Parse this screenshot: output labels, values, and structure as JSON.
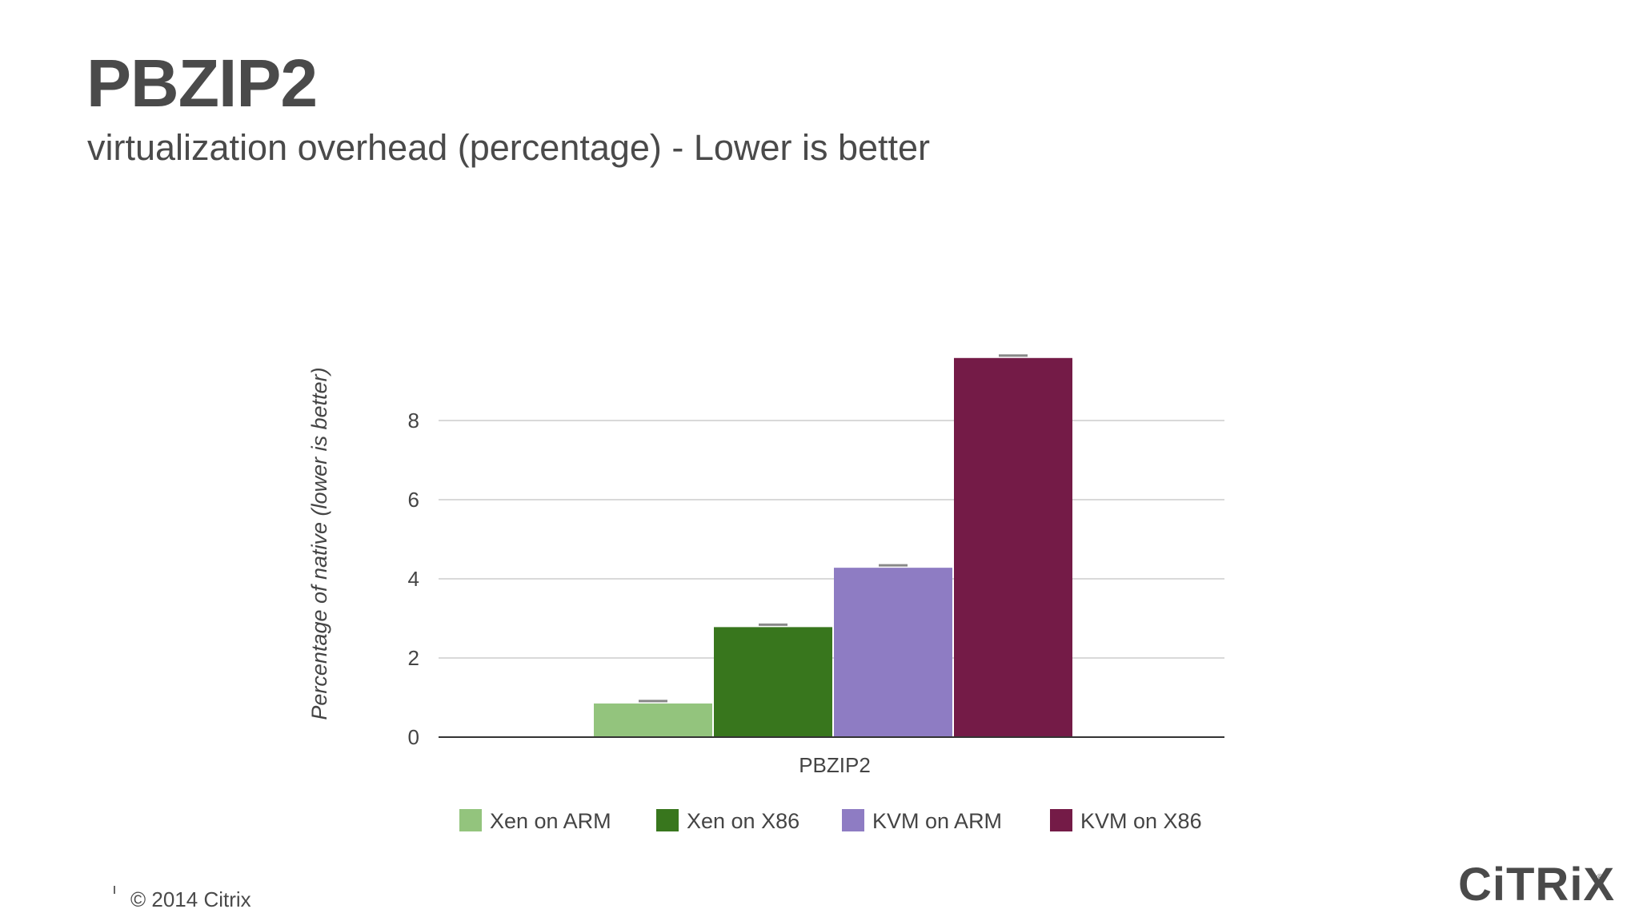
{
  "slide": {
    "title": "PBZIP2",
    "subtitle": "virtualization overhead (percentage) - Lower is better",
    "footer": "© 2014 Citrix",
    "logo_text": "CiTRiX",
    "logo_reg": "®"
  },
  "chart_data": {
    "type": "bar",
    "categories": [
      "PBZIP2"
    ],
    "series": [
      {
        "name": "Xen on ARM",
        "values": [
          0.85
        ],
        "color": "#93c47d"
      },
      {
        "name": "Xen on X86",
        "values": [
          2.78
        ],
        "color": "#38761d"
      },
      {
        "name": "KVM on ARM",
        "values": [
          4.28
        ],
        "color": "#8e7cc3"
      },
      {
        "name": "KVM on X86",
        "values": [
          9.58
        ],
        "color": "#741b47"
      }
    ],
    "ylabel": "Percentage of native (lower is better)",
    "xlabel": "",
    "ylim": [
      0,
      9.6
    ],
    "yticks": [
      "0",
      "2",
      "4",
      "6",
      "8"
    ],
    "ytick_values": [
      0,
      2,
      4,
      6,
      8
    ],
    "grid": true,
    "legend": "bottom",
    "error_bars": true
  }
}
